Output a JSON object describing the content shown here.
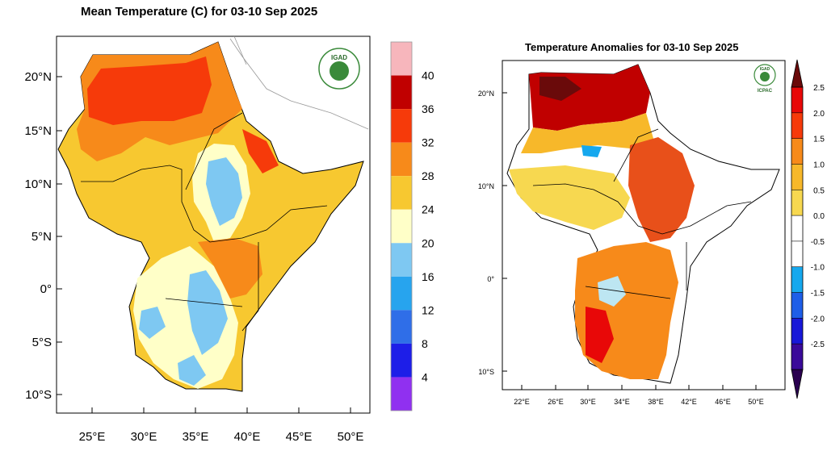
{
  "left_map": {
    "title": "Mean Temperature (C) for 03-10 Sep 2025",
    "logo_text": "IGAD",
    "lat_ticks": [
      "20°N",
      "15°N",
      "10°N",
      "5°N",
      "0°",
      "5°S",
      "10°S"
    ],
    "lon_ticks": [
      "25°E",
      "30°E",
      "35°E",
      "40°E",
      "45°E",
      "50°E"
    ],
    "colorbar": {
      "labels": [
        "40",
        "36",
        "32",
        "28",
        "24",
        "20",
        "16",
        "12",
        "8",
        "4"
      ],
      "colors": [
        "#f7b6bc",
        "#c00000",
        "#f63a0a",
        "#f78a1a",
        "#f7c830",
        "#ffffc8",
        "#7ec8f2",
        "#27a4ee",
        "#2f6ee8",
        "#1d1ee8",
        "#9030f0"
      ]
    }
  },
  "right_map": {
    "title": "Temperature Anomalies for 03-10 Sep 2025",
    "logo_text": "IGAD",
    "logo_subtext": "ICPAC",
    "lat_ticks": [
      "20°N",
      "10°N",
      "0°",
      "10°S"
    ],
    "lon_ticks": [
      "22°E",
      "26°E",
      "30°E",
      "34°E",
      "38°E",
      "42°E",
      "46°E",
      "50°E"
    ],
    "colorbar": {
      "labels": [
        "2.5",
        "2.0",
        "1.5",
        "1.0",
        "0.5",
        "0.0",
        "-0.5",
        "-1.0",
        "-1.5",
        "-2.0",
        "-2.5"
      ],
      "colors": [
        "#6a0a0a",
        "#e80808",
        "#f63a0a",
        "#f78a1a",
        "#f7b82a",
        "#f7d850",
        "#ffffff",
        "#ffffff",
        "#16a8ee",
        "#1e5ee8",
        "#1818d8",
        "#3a0a9a",
        "#2a0050"
      ]
    }
  }
}
